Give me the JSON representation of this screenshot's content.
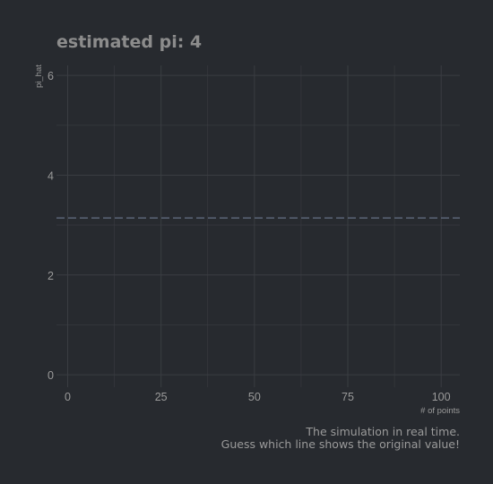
{
  "chart_data": {
    "type": "line",
    "title": "estimated pi: 4",
    "xlabel": "# of points",
    "ylabel": "pi_hat",
    "xlim": [
      -3,
      105
    ],
    "ylim": [
      -0.25,
      6.2
    ],
    "x_ticks": [
      0,
      25,
      50,
      75,
      100
    ],
    "x_minor_ticks": [
      12.5,
      37.5,
      62.5,
      87.5
    ],
    "y_ticks": [
      0,
      2,
      4,
      6
    ],
    "y_minor_ticks": [
      1,
      3,
      5
    ],
    "grid": true,
    "reference_line": {
      "y": 3.14159,
      "style": "dashed",
      "color": "#5f6b7d"
    },
    "series": [],
    "caption": [
      "The simulation in real time.",
      "Guess which line shows the original value!"
    ],
    "colors": {
      "background": "#272a2f",
      "grid": "#3a3d42",
      "text": "#9a9a9a",
      "title": "#8c8c8c"
    }
  }
}
